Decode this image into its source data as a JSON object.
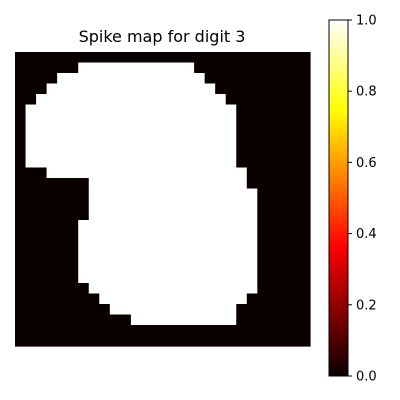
{
  "chart_data": {
    "type": "heatmap",
    "title": "Spike map for digit 3",
    "xlabel": "",
    "ylabel": "",
    "axes_visible": false,
    "colormap": "hot",
    "colorbar": {
      "range": [
        0.0,
        1.0
      ],
      "ticks": [
        0.0,
        0.2,
        0.4,
        0.6,
        0.8,
        1.0
      ],
      "tick_labels": [
        "0.0",
        "0.2",
        "0.4",
        "0.6",
        "0.8",
        "1.0"
      ]
    },
    "rows": 28,
    "cols": 28,
    "values": [
      [
        0,
        0,
        0,
        0,
        0,
        0,
        0,
        0,
        0,
        0,
        0,
        0,
        0,
        0,
        0,
        0,
        0,
        0,
        0,
        0,
        0,
        0,
        0,
        0,
        0,
        0,
        0,
        0
      ],
      [
        0,
        0,
        0,
        0,
        0,
        0,
        1,
        1,
        1,
        1,
        1,
        1,
        1,
        1,
        1,
        1,
        1,
        0,
        0,
        0,
        0,
        0,
        0,
        0,
        0,
        0,
        0,
        0
      ],
      [
        0,
        0,
        0,
        0,
        1,
        1,
        1,
        1,
        1,
        1,
        1,
        1,
        1,
        1,
        1,
        1,
        1,
        1,
        0,
        0,
        0,
        0,
        0,
        0,
        0,
        0,
        0,
        0
      ],
      [
        0,
        0,
        0,
        1,
        1,
        1,
        1,
        1,
        1,
        1,
        1,
        1,
        1,
        1,
        1,
        1,
        1,
        1,
        1,
        0,
        0,
        0,
        0,
        0,
        0,
        0,
        0,
        0
      ],
      [
        0,
        0,
        1,
        1,
        1,
        1,
        1,
        1,
        1,
        1,
        1,
        1,
        1,
        1,
        1,
        1,
        1,
        1,
        1,
        1,
        0,
        0,
        0,
        0,
        0,
        0,
        0,
        0
      ],
      [
        0,
        1,
        1,
        1,
        1,
        1,
        1,
        1,
        1,
        1,
        1,
        1,
        1,
        1,
        1,
        1,
        1,
        1,
        1,
        1,
        1,
        0,
        0,
        0,
        0,
        0,
        0,
        0
      ],
      [
        0,
        1,
        1,
        1,
        1,
        1,
        1,
        1,
        1,
        1,
        1,
        1,
        1,
        1,
        1,
        1,
        1,
        1,
        1,
        1,
        1,
        0,
        0,
        0,
        0,
        0,
        0,
        0
      ],
      [
        0,
        1,
        1,
        1,
        1,
        1,
        1,
        1,
        1,
        1,
        1,
        1,
        1,
        1,
        1,
        1,
        1,
        1,
        1,
        1,
        1,
        0,
        0,
        0,
        0,
        0,
        0,
        0
      ],
      [
        0,
        1,
        1,
        1,
        1,
        1,
        1,
        1,
        1,
        1,
        1,
        1,
        1,
        1,
        1,
        1,
        1,
        1,
        1,
        1,
        1,
        0,
        0,
        0,
        0,
        0,
        0,
        0
      ],
      [
        0,
        1,
        1,
        1,
        1,
        1,
        1,
        1,
        1,
        1,
        1,
        1,
        1,
        1,
        1,
        1,
        1,
        1,
        1,
        1,
        1,
        0,
        0,
        0,
        0,
        0,
        0,
        0
      ],
      [
        0,
        1,
        1,
        1,
        1,
        1,
        1,
        1,
        1,
        1,
        1,
        1,
        1,
        1,
        1,
        1,
        1,
        1,
        1,
        1,
        1,
        0,
        0,
        0,
        0,
        0,
        0,
        0
      ],
      [
        0,
        0,
        0,
        1,
        1,
        1,
        1,
        1,
        1,
        1,
        1,
        1,
        1,
        1,
        1,
        1,
        1,
        1,
        1,
        1,
        1,
        1,
        0,
        0,
        0,
        0,
        0,
        0
      ],
      [
        0,
        0,
        0,
        0,
        0,
        0,
        0,
        1,
        1,
        1,
        1,
        1,
        1,
        1,
        1,
        1,
        1,
        1,
        1,
        1,
        1,
        1,
        0,
        0,
        0,
        0,
        0,
        0
      ],
      [
        0,
        0,
        0,
        0,
        0,
        0,
        0,
        1,
        1,
        1,
        1,
        1,
        1,
        1,
        1,
        1,
        1,
        1,
        1,
        1,
        1,
        1,
        1,
        0,
        0,
        0,
        0,
        0
      ],
      [
        0,
        0,
        0,
        0,
        0,
        0,
        0,
        1,
        1,
        1,
        1,
        1,
        1,
        1,
        1,
        1,
        1,
        1,
        1,
        1,
        1,
        1,
        1,
        0,
        0,
        0,
        0,
        0
      ],
      [
        0,
        0,
        0,
        0,
        0,
        0,
        0,
        1,
        1,
        1,
        1,
        1,
        1,
        1,
        1,
        1,
        1,
        1,
        1,
        1,
        1,
        1,
        1,
        0,
        0,
        0,
        0,
        0
      ],
      [
        0,
        0,
        0,
        0,
        0,
        0,
        1,
        1,
        1,
        1,
        1,
        1,
        1,
        1,
        1,
        1,
        1,
        1,
        1,
        1,
        1,
        1,
        1,
        0,
        0,
        0,
        0,
        0
      ],
      [
        0,
        0,
        0,
        0,
        0,
        0,
        1,
        1,
        1,
        1,
        1,
        1,
        1,
        1,
        1,
        1,
        1,
        1,
        1,
        1,
        1,
        1,
        1,
        0,
        0,
        0,
        0,
        0
      ],
      [
        0,
        0,
        0,
        0,
        0,
        0,
        1,
        1,
        1,
        1,
        1,
        1,
        1,
        1,
        1,
        1,
        1,
        1,
        1,
        1,
        1,
        1,
        1,
        0,
        0,
        0,
        0,
        0
      ],
      [
        0,
        0,
        0,
        0,
        0,
        0,
        1,
        1,
        1,
        1,
        1,
        1,
        1,
        1,
        1,
        1,
        1,
        1,
        1,
        1,
        1,
        1,
        1,
        0,
        0,
        0,
        0,
        0
      ],
      [
        0,
        0,
        0,
        0,
        0,
        0,
        1,
        1,
        1,
        1,
        1,
        1,
        1,
        1,
        1,
        1,
        1,
        1,
        1,
        1,
        1,
        1,
        1,
        0,
        0,
        0,
        0,
        0
      ],
      [
        0,
        0,
        0,
        0,
        0,
        0,
        1,
        1,
        1,
        1,
        1,
        1,
        1,
        1,
        1,
        1,
        1,
        1,
        1,
        1,
        1,
        1,
        1,
        0,
        0,
        0,
        0,
        0
      ],
      [
        0,
        0,
        0,
        0,
        0,
        0,
        0,
        1,
        1,
        1,
        1,
        1,
        1,
        1,
        1,
        1,
        1,
        1,
        1,
        1,
        1,
        1,
        1,
        0,
        0,
        0,
        0,
        0
      ],
      [
        0,
        0,
        0,
        0,
        0,
        0,
        0,
        0,
        1,
        1,
        1,
        1,
        1,
        1,
        1,
        1,
        1,
        1,
        1,
        1,
        1,
        1,
        0,
        0,
        0,
        0,
        0,
        0
      ],
      [
        0,
        0,
        0,
        0,
        0,
        0,
        0,
        0,
        0,
        1,
        1,
        1,
        1,
        1,
        1,
        1,
        1,
        1,
        1,
        1,
        1,
        0,
        0,
        0,
        0,
        0,
        0,
        0
      ],
      [
        0,
        0,
        0,
        0,
        0,
        0,
        0,
        0,
        0,
        0,
        0,
        1,
        1,
        1,
        1,
        1,
        1,
        1,
        1,
        1,
        1,
        0,
        0,
        0,
        0,
        0,
        0,
        0
      ],
      [
        0,
        0,
        0,
        0,
        0,
        0,
        0,
        0,
        0,
        0,
        0,
        0,
        0,
        0,
        0,
        0,
        0,
        0,
        0,
        0,
        0,
        0,
        0,
        0,
        0,
        0,
        0,
        0
      ],
      [
        0,
        0,
        0,
        0,
        0,
        0,
        0,
        0,
        0,
        0,
        0,
        0,
        0,
        0,
        0,
        0,
        0,
        0,
        0,
        0,
        0,
        0,
        0,
        0,
        0,
        0,
        0,
        0
      ]
    ]
  },
  "colors": {
    "low": "#0b0000",
    "high": "#ffffff"
  }
}
